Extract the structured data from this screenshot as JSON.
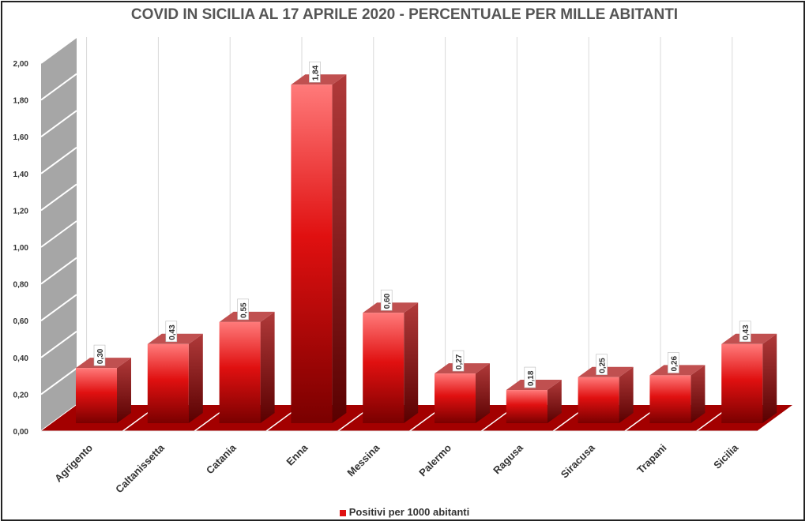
{
  "chart_data": {
    "type": "bar",
    "title": "COVID IN SICILIA AL 17  APRILE 2020 - PERCENTUALE PER MILLE ABITANTI",
    "categories": [
      "Agrigento",
      "Caltanissetta",
      "Catania",
      "Enna",
      "Messina",
      "Palermo",
      "Ragusa",
      "Siracusa",
      "Trapani",
      "Sicilia"
    ],
    "series": [
      {
        "name": "Positivi per 1000 abitanti",
        "values": [
          0.3,
          0.43,
          0.55,
          1.84,
          0.6,
          0.27,
          0.18,
          0.25,
          0.26,
          0.43
        ]
      }
    ],
    "data_labels": [
      "0,30",
      "0,43",
      "0,55",
      "1,84",
      "0,60",
      "0,27",
      "0,18",
      "0,25",
      "0,26",
      "0,43"
    ],
    "y_tick_labels": [
      "0,00",
      "0,20",
      "0,40",
      "0,60",
      "0,80",
      "1,00",
      "1,20",
      "1,40",
      "1,60",
      "1,80",
      "2,00"
    ],
    "ylim": [
      0,
      2
    ],
    "grid": true,
    "legend_position": "bottom",
    "colors": {
      "bar_front": "#e01010",
      "bar_light": "#ff7a7a",
      "bar_dark": "#7a0000",
      "floor": "#a30000",
      "wall": "#a6a6a6"
    }
  }
}
